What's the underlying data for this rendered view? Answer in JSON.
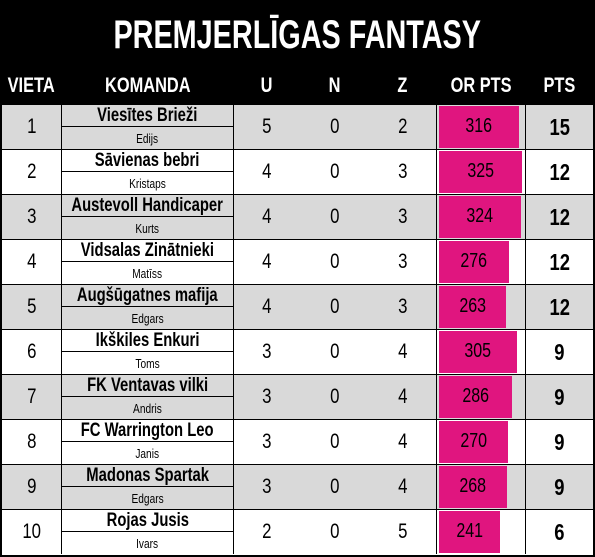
{
  "title": "PREMJERLĪGAS FANTASY",
  "colors": {
    "accent": "#e0157f",
    "header_bg": "#000000",
    "shade": "#d9d9d9"
  },
  "columns": {
    "rank": "VIETA",
    "team": "KOMANDA",
    "wins": "U",
    "draws": "N",
    "losses": "Z",
    "points_for": "OR PTS",
    "points": "PTS"
  },
  "bar_max": 330,
  "rows": [
    {
      "rank": "1",
      "team": "Viesītes Brieži",
      "manager": "Edijs",
      "wins": "5",
      "draws": "0",
      "losses": "2",
      "points_for": 316,
      "points": "15"
    },
    {
      "rank": "2",
      "team": "Sāvienas bebri",
      "manager": "Kristaps",
      "wins": "4",
      "draws": "0",
      "losses": "3",
      "points_for": 325,
      "points": "12"
    },
    {
      "rank": "3",
      "team": "Austevoll Handicaper",
      "manager": "Kurts",
      "wins": "4",
      "draws": "0",
      "losses": "3",
      "points_for": 324,
      "points": "12"
    },
    {
      "rank": "4",
      "team": "Vidsalas Zinātnieki",
      "manager": "Matīss",
      "wins": "4",
      "draws": "0",
      "losses": "3",
      "points_for": 276,
      "points": "12"
    },
    {
      "rank": "5",
      "team": "Augšūgatnes mafija",
      "manager": "Edgars",
      "wins": "4",
      "draws": "0",
      "losses": "3",
      "points_for": 263,
      "points": "12"
    },
    {
      "rank": "6",
      "team": "Ikškiles Enkuri",
      "manager": "Toms",
      "wins": "3",
      "draws": "0",
      "losses": "4",
      "points_for": 305,
      "points": "9"
    },
    {
      "rank": "7",
      "team": "FK Ventavas vilki",
      "manager": "Andris",
      "wins": "3",
      "draws": "0",
      "losses": "4",
      "points_for": 286,
      "points": "9"
    },
    {
      "rank": "8",
      "team": "FC Warrington Leo",
      "manager": "Janis",
      "wins": "3",
      "draws": "0",
      "losses": "4",
      "points_for": 270,
      "points": "9"
    },
    {
      "rank": "9",
      "team": "Madonas Spartak",
      "manager": "Edgars",
      "wins": "3",
      "draws": "0",
      "losses": "4",
      "points_for": 268,
      "points": "9"
    },
    {
      "rank": "10",
      "team": "Rojas Jusis",
      "manager": "Ivars",
      "wins": "2",
      "draws": "0",
      "losses": "5",
      "points_for": 241,
      "points": "6"
    }
  ]
}
